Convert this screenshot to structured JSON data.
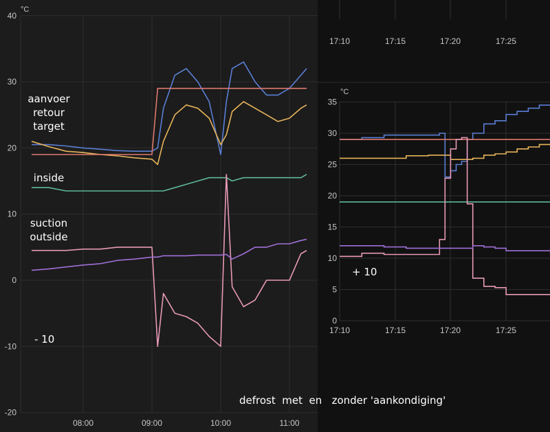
{
  "annotations": {
    "left_group1": "aanvoer\nretour\ntarget",
    "left_inside": "inside",
    "left_group2": "suction\noutside",
    "left_offset": "- 10",
    "right_offset": "+ 10",
    "caption": "defrost  met  en   zonder 'aankondiging'"
  },
  "top_strip": {
    "ticks": [
      "17:10",
      "17:15",
      "17:20",
      "17:25"
    ]
  },
  "colors": {
    "aanvoer": "#5b7fd6",
    "retour": "#e8b55a",
    "target": "#e07a6e",
    "inside": "#5fb89a",
    "suction": "#e89ab8",
    "outside": "#a070d8"
  },
  "chart_data": [
    {
      "type": "line",
      "title": "",
      "unit": "°C",
      "xlabel": "",
      "ylabel": "°C",
      "x_ticks": [
        "08:00",
        "09:00",
        "10:00",
        "11:00"
      ],
      "y_ticks": [
        40,
        30,
        20,
        10,
        0,
        -10,
        -20
      ],
      "ylim": [
        -20,
        40
      ],
      "grid": true,
      "x": [
        "07:15",
        "07:30",
        "07:45",
        "08:00",
        "08:15",
        "08:30",
        "08:45",
        "09:00",
        "09:05",
        "09:10",
        "09:20",
        "09:30",
        "09:40",
        "09:50",
        "10:00",
        "10:05",
        "10:10",
        "10:20",
        "10:30",
        "10:40",
        "10:50",
        "11:00",
        "11:10",
        "11:15"
      ],
      "series": [
        {
          "name": "aanvoer",
          "values": [
            20.5,
            20.5,
            20.3,
            20.0,
            19.8,
            19.6,
            19.5,
            19.5,
            20,
            26,
            31,
            32,
            30,
            27,
            19,
            27,
            32,
            33,
            30,
            28,
            28,
            29,
            31,
            32
          ]
        },
        {
          "name": "retour",
          "values": [
            21,
            20.2,
            19.5,
            19.3,
            19,
            18.8,
            18.5,
            18.3,
            17.5,
            21,
            25,
            26.5,
            26,
            24.5,
            20.5,
            22,
            25.5,
            27,
            26,
            25,
            24,
            24.5,
            26,
            26.5
          ]
        },
        {
          "name": "target",
          "values": [
            19,
            19,
            19,
            19,
            19,
            19,
            19,
            19,
            29,
            29,
            29,
            29,
            29,
            29,
            29,
            29,
            29,
            29,
            29,
            29,
            29,
            29,
            29,
            29
          ]
        },
        {
          "name": "inside",
          "values": [
            14,
            14,
            13.5,
            13.5,
            13.5,
            13.5,
            13.5,
            13.5,
            13.5,
            13.5,
            14,
            14.5,
            15,
            15.5,
            15.5,
            15.5,
            15,
            15.5,
            15.5,
            15.5,
            15.5,
            15.5,
            15.5,
            16
          ]
        },
        {
          "name": "suction",
          "values": [
            4.5,
            4.5,
            4.5,
            4.7,
            4.7,
            5,
            5,
            5,
            -10,
            -2,
            -5,
            -5.5,
            -6.5,
            -8.5,
            -10,
            16,
            -1,
            -4,
            -3,
            0,
            0,
            0,
            4,
            4.5
          ]
        },
        {
          "name": "outside",
          "values": [
            1.5,
            1.7,
            2,
            2.3,
            2.5,
            3,
            3.2,
            3.5,
            3.5,
            3.7,
            3.7,
            3.7,
            3.8,
            3.8,
            3.8,
            3.9,
            3.2,
            4,
            5,
            5,
            5.5,
            5.5,
            6,
            6.2
          ]
        }
      ],
      "annotations": [
        "aanvoer retour target",
        "inside",
        "suction outside",
        "- 10"
      ]
    },
    {
      "type": "line",
      "title": "",
      "unit": "°C",
      "x_ticks": [
        "17:10",
        "17:15",
        "17:20",
        "17:25"
      ],
      "y_ticks": [
        35,
        30,
        25,
        20,
        15,
        10,
        5,
        0
      ],
      "ylim": [
        0,
        35
      ],
      "grid": true,
      "x": [
        "17:10",
        "17:12",
        "17:14",
        "17:16",
        "17:18",
        "17:19",
        "17:19.5",
        "17:20",
        "17:20.5",
        "17:21",
        "17:21.5",
        "17:22",
        "17:23",
        "17:24",
        "17:25",
        "17:26",
        "17:27",
        "17:28",
        "17:29"
      ],
      "series": [
        {
          "name": "aanvoer",
          "values": [
            29,
            29.3,
            29.7,
            29.7,
            29.7,
            30,
            23,
            24,
            25,
            25.5,
            29,
            30,
            31.5,
            32,
            33,
            33.5,
            34,
            34.5,
            34.5
          ]
        },
        {
          "name": "retour",
          "values": [
            26,
            26,
            26,
            26.4,
            26.5,
            26.5,
            26.5,
            25.8,
            25.8,
            25.8,
            25.8,
            26,
            26.5,
            26.7,
            27,
            27.5,
            27.8,
            28.2,
            28.5
          ]
        },
        {
          "name": "target",
          "values": [
            29,
            29,
            29,
            29,
            29,
            29,
            29,
            29,
            29,
            29,
            29,
            29,
            29,
            29,
            29,
            29,
            29,
            29,
            29
          ]
        },
        {
          "name": "inside",
          "values": [
            19,
            19,
            19,
            19,
            19,
            19,
            19,
            19,
            19,
            19,
            19,
            19,
            19,
            19,
            19,
            19,
            19,
            19,
            19
          ]
        },
        {
          "name": "suction (+10)",
          "values": [
            10.3,
            10.8,
            10.6,
            10.6,
            10.6,
            13,
            22.8,
            27.5,
            29,
            29.3,
            18.7,
            6.8,
            5.5,
            5.3,
            4.2,
            4.2,
            4.2,
            4.2,
            4.2
          ]
        },
        {
          "name": "outside (+10)",
          "values": [
            12,
            12,
            11.8,
            11.6,
            11.6,
            11.6,
            11.6,
            11.6,
            11.6,
            11.6,
            11.6,
            12,
            11.8,
            11.6,
            11.2,
            11.2,
            11.2,
            11.2,
            10.8
          ]
        }
      ],
      "annotations": [
        "+ 10"
      ]
    }
  ]
}
